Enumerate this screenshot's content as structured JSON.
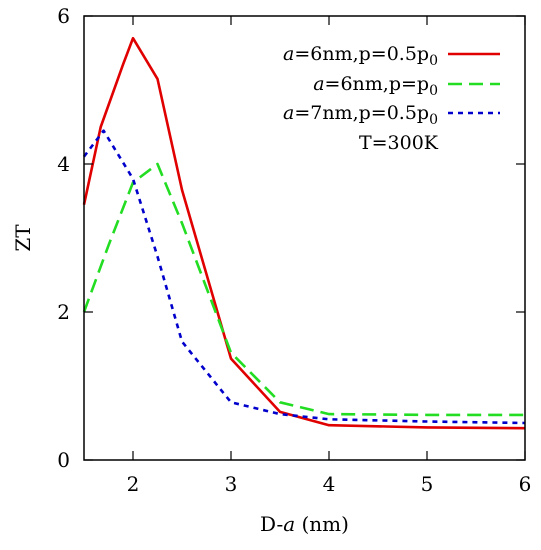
{
  "chart_data": {
    "type": "line",
    "title": "",
    "xlabel": {
      "prefix": "D-",
      "var": "a",
      "unit": " (nm)"
    },
    "ylabel": "ZT",
    "xlim": [
      1.5,
      6
    ],
    "ylim": [
      0,
      6
    ],
    "xticks": [
      "2",
      "3",
      "4",
      "5",
      "6"
    ],
    "yticks": [
      "0",
      "2",
      "4",
      "6"
    ],
    "grid": false,
    "legend_position": "top-right",
    "annotation": "T=300K",
    "series": [
      {
        "name": {
          "var": "a",
          "main": "=6nm,p=0.5p",
          "sub": "0"
        },
        "color": "#e00000",
        "dash": "solid",
        "x": [
          1.5,
          1.67,
          1.9,
          2.0,
          2.25,
          2.5,
          3.0,
          3.5,
          4.0,
          5.0,
          6.0
        ],
        "y": [
          3.45,
          4.5,
          5.35,
          5.7,
          5.15,
          3.65,
          1.37,
          0.65,
          0.47,
          0.44,
          0.43
        ]
      },
      {
        "name": {
          "var": "a",
          "main": "=6nm,p=p",
          "sub": "0"
        },
        "color": "#22dd22",
        "dash": "long",
        "x": [
          1.5,
          1.75,
          2.0,
          2.25,
          2.5,
          3.0,
          3.5,
          4.0,
          5.0,
          6.0
        ],
        "y": [
          2.0,
          2.9,
          3.75,
          4.0,
          3.2,
          1.45,
          0.78,
          0.62,
          0.61,
          0.61
        ]
      },
      {
        "name": {
          "var": "a",
          "main": "=7nm,p=0.5p",
          "sub": "0"
        },
        "color": "#0000cc",
        "dash": "short",
        "x": [
          1.5,
          1.7,
          2.0,
          2.25,
          2.5,
          3.0,
          3.5,
          4.0,
          5.0,
          6.0
        ],
        "y": [
          4.1,
          4.45,
          3.8,
          2.75,
          1.6,
          0.78,
          0.62,
          0.55,
          0.52,
          0.5
        ]
      }
    ]
  }
}
